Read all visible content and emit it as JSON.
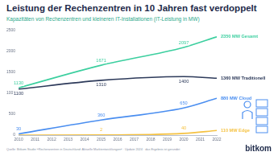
{
  "chart_data": {
    "type": "line",
    "title": "Leistung der Rechenzentren in 10 Jahren fast verdoppelt",
    "subtitle": "Kapazitäten von Rechenzentren und kleineren IT-Installationen (IT-Leistung in MW)",
    "source": "Quelle: Bitkom Studie »Rechenzentren in Deutschland: Aktuelle Marktentwicklungen« · Update 2024 · das Ergebnis ist gerundet",
    "logo": "bitkom",
    "x": [
      2010,
      2015,
      2020,
      2022
    ],
    "xlim": [
      2010,
      2022
    ],
    "xticks": [
      2010,
      2011,
      2012,
      2013,
      2014,
      2015,
      2016,
      2017,
      2018,
      2019,
      2020,
      2021,
      2022
    ],
    "ylim": [
      0,
      2500
    ],
    "yticks": [
      0,
      500,
      1000,
      1500,
      2000,
      2500
    ],
    "grid": false,
    "data_labels": true,
    "series": [
      {
        "name": "Gesamt",
        "color": "#3ccf9f",
        "values": [
          1130,
          1671,
          2097,
          2350
        ],
        "value_labels": [
          "1130",
          "1671",
          "2097",
          "2350 MW Gesamt"
        ]
      },
      {
        "name": "Traditionell",
        "color": "#2d3a5a",
        "values": [
          1100,
          1310,
          1400,
          1360
        ],
        "value_labels": [
          "1100",
          "1310",
          "1400",
          "1360 MW Traditionell"
        ]
      },
      {
        "name": "Cloud",
        "color": "#4a8ef0",
        "values": [
          30,
          360,
          650,
          880
        ],
        "value_labels": [
          "30",
          "360",
          "650",
          "880 MW Cloud"
        ]
      },
      {
        "name": "Edge",
        "color": "#f5c242",
        "values": [
          0,
          2,
          40,
          110
        ],
        "value_labels": [
          null,
          "2",
          "40",
          "110 MW Edge"
        ]
      }
    ]
  }
}
